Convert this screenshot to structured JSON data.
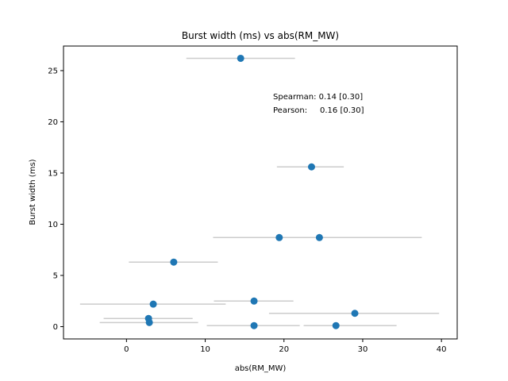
{
  "chart_data": {
    "type": "scatter",
    "title": "Burst width (ms) vs abs(RM_MW)",
    "xlabel": "abs(RM_MW)",
    "ylabel": "Burst width (ms)",
    "xlim": [
      -8,
      42
    ],
    "ylim": [
      -1.2,
      27.4
    ],
    "xticks": [
      0,
      10,
      20,
      30,
      40
    ],
    "yticks": [
      0,
      5,
      10,
      15,
      20,
      25
    ],
    "grid": false,
    "colors": {
      "points": "#1f77b4",
      "errorbars": "#cccccc",
      "axes": "#000000"
    },
    "points": [
      {
        "x": 14.5,
        "y": 26.2,
        "xerr_low": 7.6,
        "xerr_high": 21.4
      },
      {
        "x": 23.5,
        "y": 15.6,
        "xerr_low": 19.1,
        "xerr_high": 27.6
      },
      {
        "x": 19.4,
        "y": 8.7,
        "xerr_low": 11.0,
        "xerr_high": 27.9
      },
      {
        "x": 24.5,
        "y": 8.7,
        "xerr_low": 11.6,
        "xerr_high": 37.5
      },
      {
        "x": 6.0,
        "y": 6.3,
        "xerr_low": 0.3,
        "xerr_high": 11.6
      },
      {
        "x": 16.2,
        "y": 2.5,
        "xerr_low": 11.1,
        "xerr_high": 21.2
      },
      {
        "x": 3.4,
        "y": 2.2,
        "xerr_low": -5.9,
        "xerr_high": 12.6
      },
      {
        "x": 29.0,
        "y": 1.3,
        "xerr_low": 18.1,
        "xerr_high": 39.7
      },
      {
        "x": 2.8,
        "y": 0.8,
        "xerr_low": -2.9,
        "xerr_high": 8.4
      },
      {
        "x": 2.9,
        "y": 0.4,
        "xerr_low": -3.4,
        "xerr_high": 9.1
      },
      {
        "x": 16.2,
        "y": 0.1,
        "xerr_low": 10.2,
        "xerr_high": 22.0
      },
      {
        "x": 26.6,
        "y": 0.1,
        "xerr_low": 22.5,
        "xerr_high": 34.3
      }
    ],
    "annotations": [
      {
        "label": "Spearman: 0.14 [0.30]"
      },
      {
        "label": "Pearson:     0.16 [0.30]"
      }
    ]
  }
}
